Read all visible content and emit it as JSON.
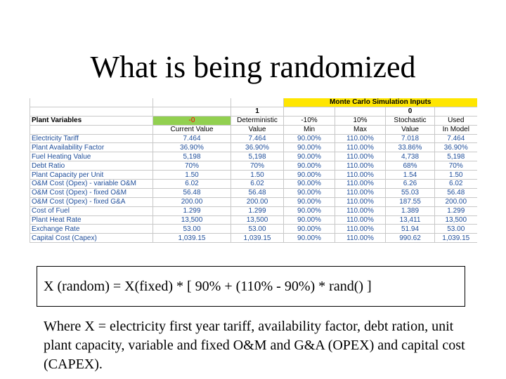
{
  "slide": {
    "title": "What is being randomized",
    "formula": "X (random) = X(fixed) * [ 90% + (110% - 90%) * rand() ]",
    "note": "Where X = electricity first year tariff, availability factor, debt ration, unit plant capacity, variable and fixed O&M  and G&A (OPEX) and capital cost (CAPEX)."
  },
  "table": {
    "banner": "Monte Carlo Simulation Inputs",
    "group_1": "1",
    "group_0": "0",
    "plant_variables_label": "Plant Variables",
    "header1": [
      "-0",
      "Deterministic",
      "-10%",
      "10%",
      "Stochastic",
      "Used"
    ],
    "header2": [
      "Current Value",
      "Value",
      "Min",
      "Max",
      "Value",
      "In Model"
    ],
    "rows": [
      [
        "Electricity Tariff",
        "7.464",
        "7.464",
        "90.00%",
        "110.00%",
        "7.018",
        "7.464"
      ],
      [
        "Plant Availability Factor",
        "36.90%",
        "36.90%",
        "90.00%",
        "110.00%",
        "33.86%",
        "36.90%"
      ],
      [
        "Fuel Heating Value",
        "5,198",
        "5,198",
        "90.00%",
        "110.00%",
        "4,738",
        "5,198"
      ],
      [
        "Debt Ratio",
        "70%",
        "70%",
        "90.00%",
        "110.00%",
        "68%",
        "70%"
      ],
      [
        "Plant Capacity per Unit",
        "1.50",
        "1.50",
        "90.00%",
        "110.00%",
        "1.54",
        "1.50"
      ],
      [
        "O&M Cost (Opex) - variable O&M",
        "6.02",
        "6.02",
        "90.00%",
        "110.00%",
        "6.26",
        "6.02"
      ],
      [
        "O&M Cost (Opex) - fixed O&M",
        "56.48",
        "56.48",
        "90.00%",
        "110.00%",
        "55.03",
        "56.48"
      ],
      [
        "O&M Cost (Opex) - fixed G&A",
        "200.00",
        "200.00",
        "90.00%",
        "110.00%",
        "187.55",
        "200.00"
      ],
      [
        "Cost of Fuel",
        "1.299",
        "1.299",
        "90.00%",
        "110.00%",
        "1.389",
        "1.299"
      ],
      [
        "Plant Heat Rate",
        "13,500",
        "13,500",
        "90.00%",
        "110.00%",
        "13,411",
        "13,500"
      ],
      [
        "Exchange Rate",
        "53.00",
        "53.00",
        "90.00%",
        "110.00%",
        "51.94",
        "53.00"
      ],
      [
        "Capital Cost (Capex)",
        "1,039.15",
        "1,039.15",
        "90.00%",
        "110.00%",
        "990.62",
        "1,039.15"
      ]
    ]
  },
  "colors": {
    "banner_yellow": "#ffe600",
    "current_value_green": "#92d050",
    "value_blue": "#1f4e9a",
    "negative_red": "#ff0000"
  }
}
